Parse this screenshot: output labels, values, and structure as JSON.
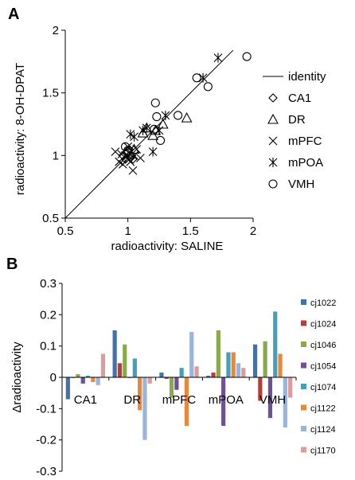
{
  "chart_data": [
    {
      "panel": "A",
      "type": "scatter",
      "xlabel": "radioactivity: SALINE",
      "ylabel": "radioactivity: 8-OH-DPAT",
      "xlim": [
        0.5,
        2
      ],
      "ylim": [
        0.5,
        2
      ],
      "xticks": [
        "0.5",
        "1",
        "1.5",
        "2"
      ],
      "yticks": [
        "0.5",
        "1",
        "1.5",
        "2"
      ],
      "legend_position": "right",
      "identity_line": {
        "name": "identity",
        "x": [
          0.5,
          1.84
        ],
        "y": [
          0.5,
          1.84
        ]
      },
      "series": [
        {
          "name": "CA1",
          "marker": "diamond",
          "points": [
            [
              0.96,
              1.0
            ],
            [
              0.98,
              0.97
            ],
            [
              1.0,
              1.03
            ],
            [
              1.02,
              0.98
            ],
            [
              1.03,
              1.0
            ],
            [
              0.99,
              1.02
            ],
            [
              1.04,
              0.97
            ],
            [
              1.01,
              1.05
            ]
          ]
        },
        {
          "name": "DR",
          "marker": "triangle",
          "points": [
            [
              1.22,
              1.2
            ],
            [
              1.28,
              1.25
            ],
            [
              1.47,
              1.3
            ],
            [
              1.12,
              1.18
            ],
            [
              1.05,
              1.05
            ],
            [
              1.15,
              1.22
            ],
            [
              1.2,
              1.16
            ]
          ]
        },
        {
          "name": "mPFC",
          "marker": "x",
          "points": [
            [
              0.9,
              1.03
            ],
            [
              0.93,
              0.95
            ],
            [
              0.96,
              0.93
            ],
            [
              0.98,
              1.0
            ],
            [
              1.0,
              0.98
            ],
            [
              1.02,
              0.95
            ],
            [
              1.04,
              0.88
            ],
            [
              1.05,
              1.0
            ],
            [
              1.07,
              1.05
            ],
            [
              1.1,
              0.98
            ],
            [
              1.0,
              1.07
            ],
            [
              0.95,
              1.01
            ]
          ]
        },
        {
          "name": "mPOA",
          "marker": "star",
          "points": [
            [
              1.02,
              1.17
            ],
            [
              1.15,
              1.22
            ],
            [
              1.2,
              1.03
            ],
            [
              1.25,
              1.2
            ],
            [
              1.3,
              1.32
            ],
            [
              1.6,
              1.62
            ],
            [
              1.72,
              1.78
            ],
            [
              1.05,
              1.15
            ],
            [
              1.12,
              1.2
            ]
          ]
        },
        {
          "name": "VMH",
          "marker": "circle",
          "points": [
            [
              0.98,
              1.07
            ],
            [
              1.22,
              1.42
            ],
            [
              1.23,
              1.31
            ],
            [
              1.26,
              1.12
            ],
            [
              1.4,
              1.32
            ],
            [
              1.55,
              1.62
            ],
            [
              1.64,
              1.55
            ],
            [
              1.95,
              1.79
            ],
            [
              1.0,
              1.04
            ],
            [
              1.21,
              1.21
            ]
          ]
        }
      ]
    },
    {
      "panel": "B",
      "type": "bar",
      "ylabel": "Δradioactivity",
      "ylim": [
        -0.3,
        0.3
      ],
      "yticks": [
        "0.3",
        "0.2",
        "0.1",
        "0",
        "-0.1",
        "-0.2",
        "-0.3"
      ],
      "categories": [
        "CA1",
        "DR",
        "mPFC",
        "mPOA",
        "VMH"
      ],
      "legend_position": "right",
      "series": [
        {
          "name": "cj1022",
          "color": "#4472a8",
          "values": [
            -0.07,
            0.15,
            0.015,
            0.005,
            0.105
          ]
        },
        {
          "name": "cj1024",
          "color": "#b0403c",
          "values": [
            0.0,
            0.045,
            -0.005,
            0.015,
            -0.075
          ]
        },
        {
          "name": "cj1046",
          "color": "#8aaa4a",
          "values": [
            0.01,
            0.105,
            -0.065,
            0.15,
            0.115
          ]
        },
        {
          "name": "cj1054",
          "color": "#6e5096",
          "values": [
            -0.02,
            0.0,
            -0.04,
            -0.155,
            -0.13
          ]
        },
        {
          "name": "cj1074",
          "color": "#44a0b8",
          "values": [
            0.005,
            0.06,
            0.03,
            0.08,
            0.21
          ]
        },
        {
          "name": "cj1122",
          "color": "#e8883c",
          "values": [
            -0.015,
            -0.105,
            -0.155,
            0.08,
            0.075
          ]
        },
        {
          "name": "cj1124",
          "color": "#9ab4dc",
          "values": [
            -0.025,
            -0.2,
            0.145,
            0.045,
            -0.16
          ]
        },
        {
          "name": "cj1170",
          "color": "#dc9c9c",
          "values": [
            0.075,
            -0.02,
            0.035,
            0.03,
            -0.065
          ]
        }
      ]
    }
  ],
  "panels": {
    "a": "A",
    "b": "B"
  }
}
